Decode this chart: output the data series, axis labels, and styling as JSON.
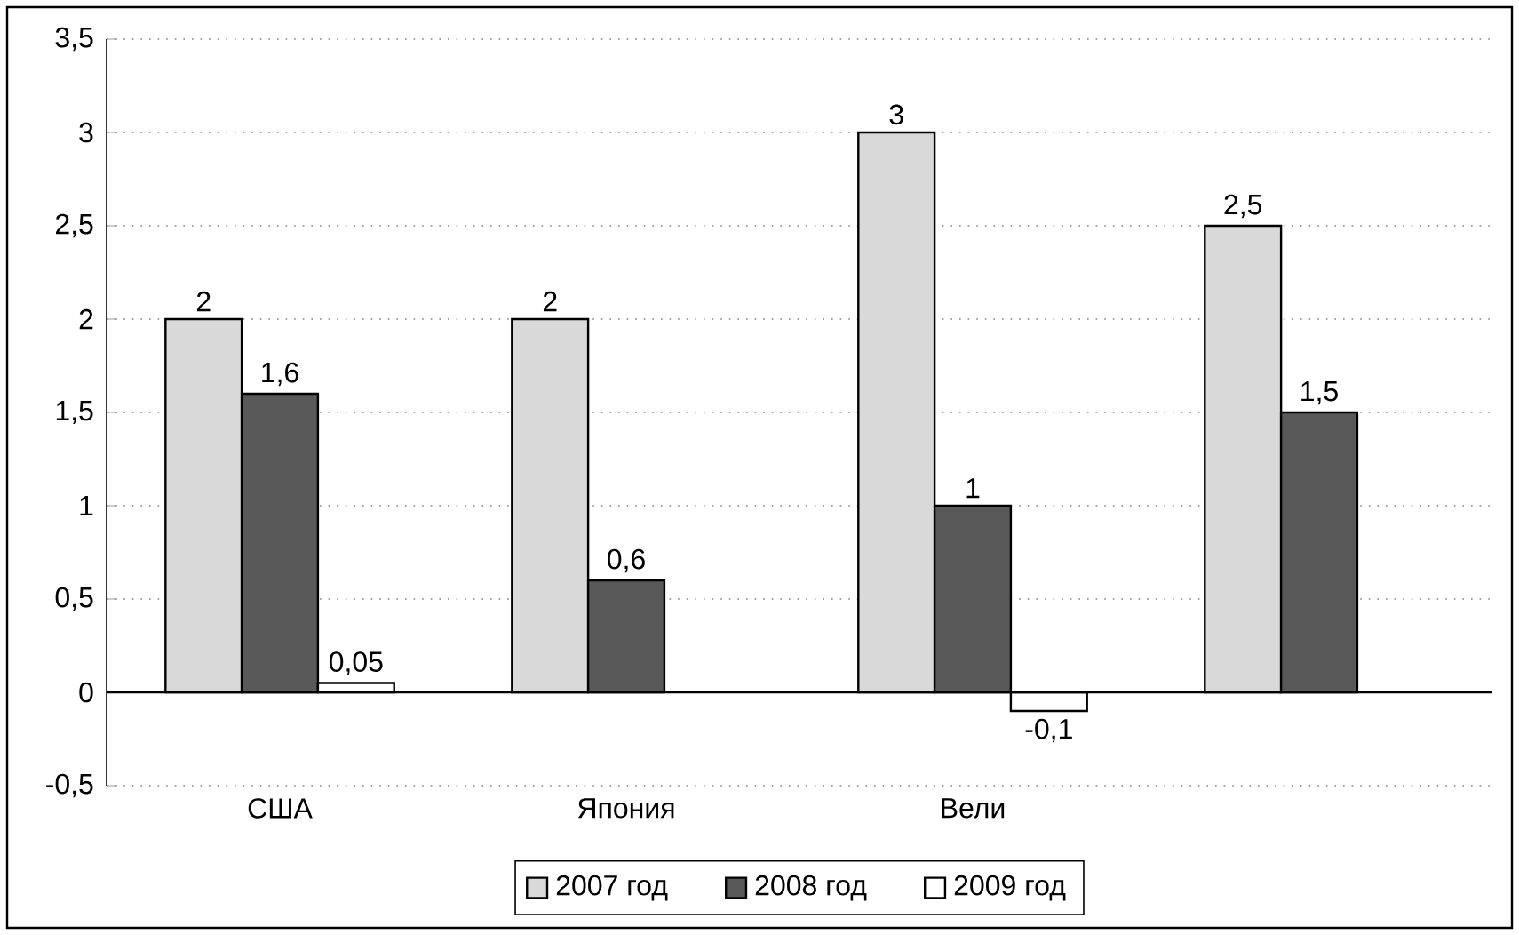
{
  "chart_data": {
    "type": "bar",
    "categories": [
      "США",
      "Япония",
      "Вели",
      null
    ],
    "series": [
      {
        "name": "2007 год",
        "color": "#d9d9d9",
        "values": [
          2,
          2,
          3,
          2.5
        ],
        "value_labels": [
          "2",
          "2",
          "3",
          "2,5"
        ]
      },
      {
        "name": "2008 год",
        "color": "#595959",
        "values": [
          1.6,
          0.6,
          1,
          1.5
        ],
        "value_labels": [
          "1,6",
          "0,6",
          "1",
          "1,5"
        ]
      },
      {
        "name": "2009 год",
        "color": "#ffffff",
        "values": [
          0.05,
          null,
          -0.1,
          null
        ],
        "value_labels": [
          "0,05",
          null,
          "-0,1",
          null
        ]
      }
    ],
    "ylim": [
      -0.5,
      3.5
    ],
    "yticks": [
      {
        "value": -0.5,
        "label": "-0,5"
      },
      0,
      {
        "value": 0.5,
        "label": "0,5"
      },
      1,
      {
        "value": 1.5,
        "label": "1,5"
      },
      2,
      {
        "value": 2.5,
        "label": "2,5"
      },
      3,
      {
        "value": 3.5,
        "label": "3,5"
      }
    ],
    "grid": "y",
    "legend": "bottom"
  }
}
